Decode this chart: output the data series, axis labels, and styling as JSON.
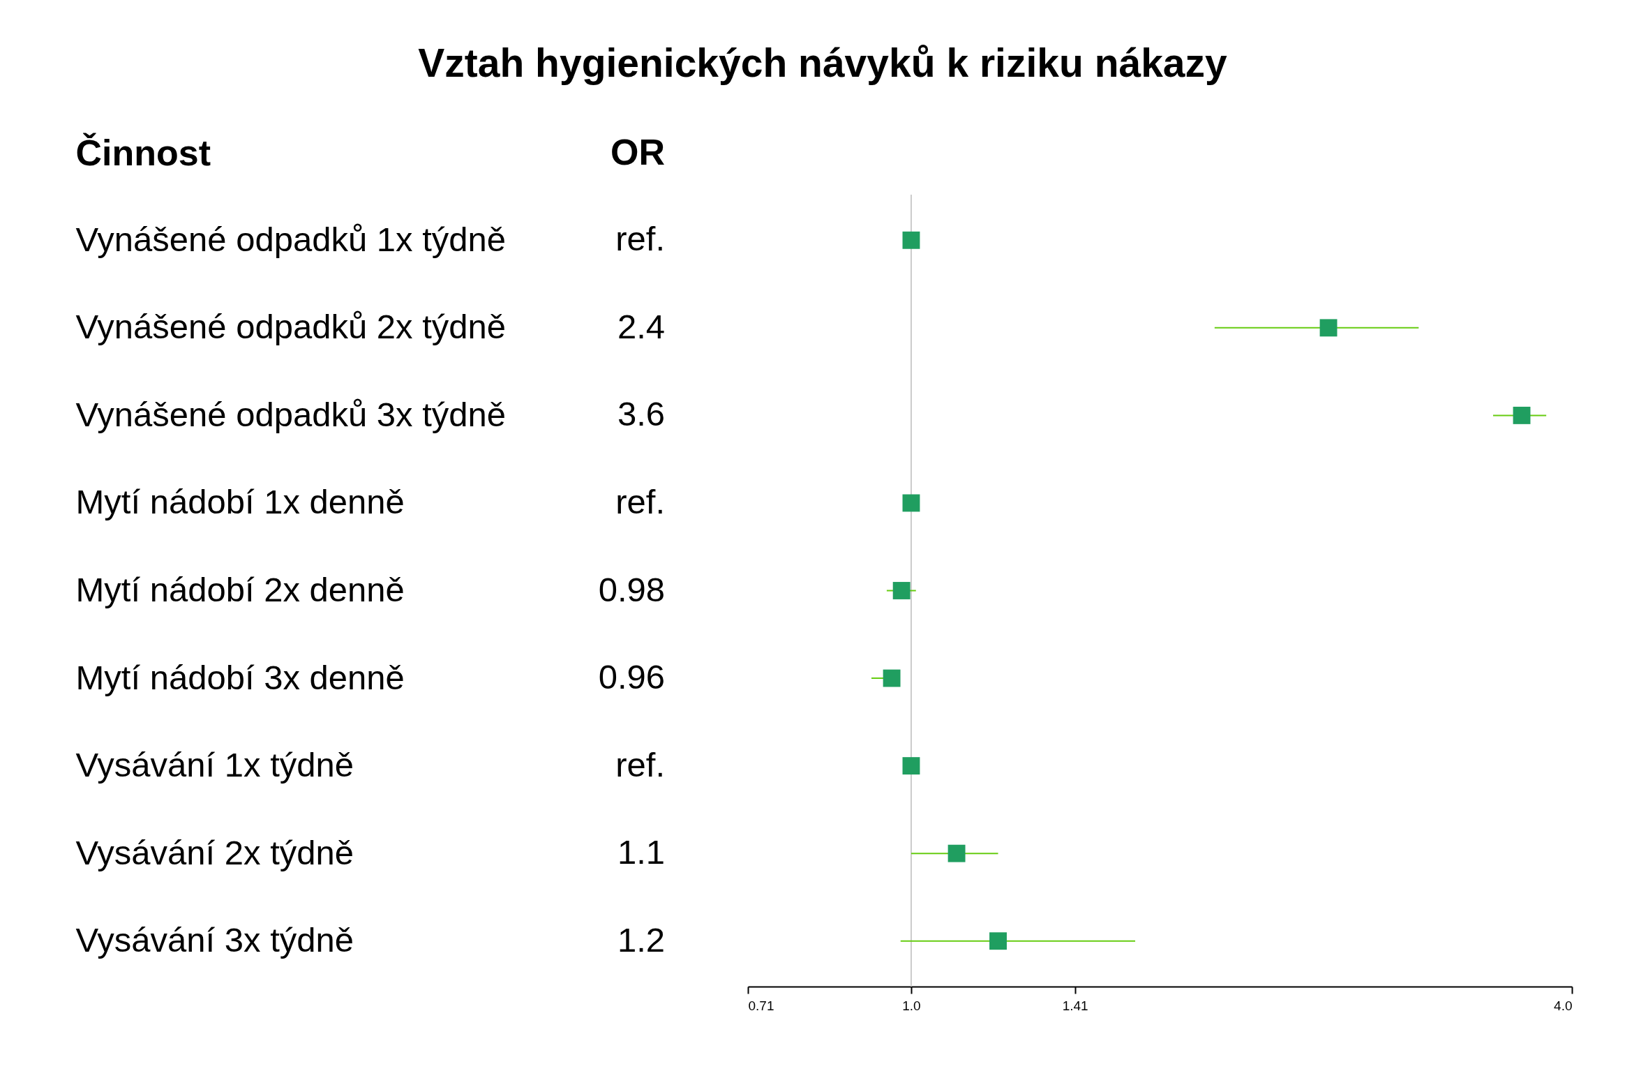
{
  "chart_data": {
    "type": "scatter",
    "orientation": "horizontal",
    "title": "Vztah hygienických návyků k riziku nákazy",
    "ylabel": "Činnost",
    "annotations": [
      "OR"
    ],
    "categories": [
      "Vynášené odpadků 1x týdně",
      "Vynášené odpadků 2x týdně",
      "Vynášené odpadků 3x týdně",
      "Mytí nádobí 1x denně",
      "Mytí nádobí 2x denně",
      "Mytí nádobí 3x denně",
      "Vysávání 1x týdně",
      "Vysávání 2x týdně",
      "Vysávání 3x týdně"
    ],
    "series": [
      {
        "color": "#209e60",
        "values": [
          1.0,
          2.4,
          3.6,
          1.0,
          0.98,
          0.96,
          1.0,
          1.1,
          1.2
        ],
        "value_labels": [
          "ref.",
          "2.4",
          "3.6",
          "ref.",
          "0.98",
          "0.96",
          "ref.",
          "1.1",
          "1.2"
        ],
        "errors": [
          null,
          [
            1.89,
            2.9
          ],
          [
            3.39,
            3.79
          ],
          null,
          [
            0.95,
            1.01
          ],
          [
            0.92,
            0.976
          ],
          null,
          [
            1.0,
            1.2
          ],
          [
            0.978,
            1.6
          ]
        ]
      }
    ],
    "log": "x",
    "xlim": [
      0.71,
      4.0
    ],
    "xticks": [
      0.71,
      {
        "value": 1,
        "label": "1.0"
      },
      1.41,
      {
        "value": 4,
        "label": "4.0"
      }
    ],
    "ref_lines": [
      {
        "axis": "x",
        "value": 1,
        "color": "#cccccc"
      }
    ],
    "marker": "square",
    "grid": false,
    "legend": false
  }
}
